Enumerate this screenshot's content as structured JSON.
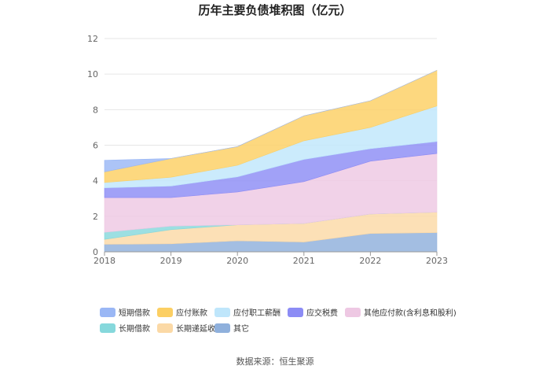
{
  "chart_data": {
    "type": "area",
    "stacked": true,
    "title": "历年主要负债堆积图（亿元）",
    "x": [
      "2018",
      "2019",
      "2020",
      "2021",
      "2022",
      "2023"
    ],
    "ylim": [
      0,
      12
    ],
    "yticks": [
      0,
      2,
      4,
      6,
      8,
      10,
      12
    ],
    "grid": true,
    "legend_position": "bottom",
    "series": [
      {
        "name": "其它",
        "color": "#8fb0dc",
        "values": [
          0.42,
          0.45,
          0.62,
          0.55,
          1.03,
          1.08
        ]
      },
      {
        "name": "长期递延收益",
        "color": "#fbd9a6",
        "values": [
          0.28,
          0.8,
          0.9,
          1.05,
          1.1,
          1.15
        ]
      },
      {
        "name": "长期借款",
        "color": "#86d8dc",
        "values": [
          0.4,
          0.2,
          0.0,
          0.0,
          0.0,
          0.0
        ]
      },
      {
        "name": "其他应付款(含利息和股利)",
        "color": "#eec8e3",
        "values": [
          1.95,
          1.6,
          1.85,
          2.35,
          2.97,
          3.3
        ]
      },
      {
        "name": "应交税费",
        "color": "#8c8cf5",
        "values": [
          0.55,
          0.65,
          0.85,
          1.25,
          0.7,
          0.68
        ]
      },
      {
        "name": "应付职工薪酬",
        "color": "#bfe6fb",
        "values": [
          0.3,
          0.5,
          0.65,
          1.05,
          1.2,
          2.0
        ]
      },
      {
        "name": "应付账款",
        "color": "#fccf63",
        "values": [
          0.6,
          1.05,
          1.05,
          1.4,
          1.5,
          2.0
        ]
      },
      {
        "name": "短期借款",
        "color": "#9ab7f5",
        "values": [
          0.65,
          0.0,
          0.0,
          0.0,
          0.0,
          0.0
        ]
      }
    ],
    "legend_order": [
      "短期借款",
      "应付账款",
      "应付职工薪酬",
      "应交税费",
      "其他应付款(含利息和股利)",
      "长期借款",
      "长期递延收益",
      "其它"
    ]
  },
  "source": "数据来源：恒生聚源"
}
